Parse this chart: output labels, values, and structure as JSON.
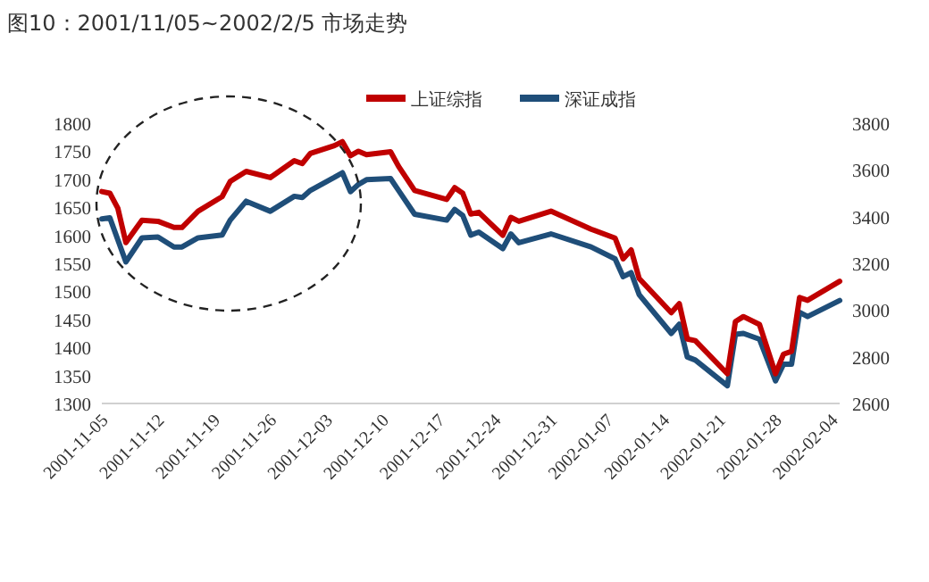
{
  "chart_data": {
    "type": "line",
    "title": "图10：2001/11/05~2002/2/5 市场走势",
    "x": [
      "2001-11-05",
      "2001-11-06",
      "2001-11-07",
      "2001-11-08",
      "2001-11-10",
      "2001-11-12",
      "2001-11-14",
      "2001-11-15",
      "2001-11-17",
      "2001-11-20",
      "2001-11-21",
      "2001-11-23",
      "2001-11-26",
      "2001-11-29",
      "2001-11-30",
      "2001-12-01",
      "2001-12-04",
      "2001-12-05",
      "2001-12-06",
      "2001-12-07",
      "2001-12-08",
      "2001-12-11",
      "2001-12-12",
      "2001-12-14",
      "2001-12-18",
      "2001-12-19",
      "2001-12-20",
      "2001-12-21",
      "2001-12-22",
      "2001-12-25",
      "2001-12-26",
      "2001-12-27",
      "2001-12-31",
      "2002-01-05",
      "2002-01-08",
      "2002-01-09",
      "2002-01-10",
      "2002-01-11",
      "2002-01-15",
      "2002-01-16",
      "2002-01-17",
      "2002-01-18",
      "2002-01-22",
      "2002-01-23",
      "2002-01-24",
      "2002-01-26",
      "2002-01-28",
      "2002-01-29",
      "2002-01-30",
      "2002-01-31",
      "2002-02-01",
      "2002-02-05"
    ],
    "series": [
      {
        "name": "上证综指",
        "color": "#c00000",
        "values": [
          1678,
          1675,
          1648,
          1587,
          1627,
          1625,
          1614,
          1614,
          1643,
          1669,
          1696,
          1714,
          1703,
          1733,
          1728,
          1746,
          1760,
          1767,
          1742,
          1750,
          1744,
          1749,
          1723,
          1680,
          1664,
          1685,
          1675,
          1638,
          1641,
          1600,
          1632,
          1625,
          1643,
          1611,
          1595,
          1558,
          1574,
          1523,
          1462,
          1478,
          1415,
          1412,
          1353,
          1446,
          1455,
          1441,
          1353,
          1388,
          1393,
          1489,
          1484,
          1518
        ]
      },
      {
        "name": "深证成指",
        "color": "#1f4e79",
        "axis": "y2",
        "values": [
          3390,
          3395,
          3300,
          3206,
          3309,
          3313,
          3270,
          3270,
          3309,
          3321,
          3385,
          3466,
          3423,
          3487,
          3482,
          3512,
          3568,
          3588,
          3507,
          3538,
          3558,
          3563,
          3512,
          3410,
          3385,
          3431,
          3405,
          3321,
          3334,
          3263,
          3326,
          3288,
          3326,
          3270,
          3219,
          3143,
          3160,
          3066,
          2900,
          2939,
          2799,
          2786,
          2676,
          2896,
          2900,
          2875,
          2697,
          2768,
          2768,
          2990,
          2972,
          3041
        ]
      }
    ],
    "xlim": [
      "2001-11-05",
      "2002-02-05"
    ],
    "xticks": [
      "2001-11-05",
      "2001-11-12",
      "2001-11-19",
      "2001-11-26",
      "2001-12-03",
      "2001-12-10",
      "2001-12-17",
      "2001-12-24",
      "2001-12-31",
      "2002-01-07",
      "2002-01-14",
      "2002-01-21",
      "2002-01-28",
      "2002-02-04"
    ],
    "ylim": [
      1300,
      1800
    ],
    "yticks": [
      1300,
      1350,
      1400,
      1450,
      1500,
      1550,
      1600,
      1650,
      1700,
      1750,
      1800
    ],
    "y2lim": [
      2600,
      3800
    ],
    "y2ticks": [
      2600,
      2800,
      3000,
      3200,
      3400,
      3600,
      3800
    ],
    "legend": "top",
    "grid": false,
    "marker": "none",
    "line_style": "solid"
  }
}
